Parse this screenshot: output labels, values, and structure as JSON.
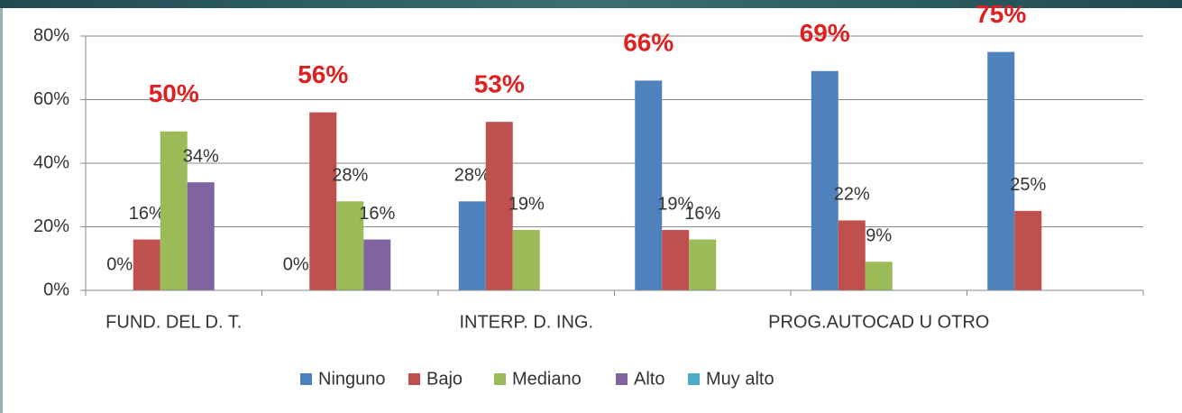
{
  "chart_data": {
    "type": "bar",
    "categories": [
      "FUND. DEL D. T.",
      null,
      "INTERP. D. ING.",
      null,
      "PROG.AUTOCAD U OTRO",
      null
    ],
    "series": [
      {
        "name": "Ninguno",
        "color": "#4f81bd",
        "values": [
          0,
          0,
          28,
          66,
          69,
          75
        ],
        "value_labels": [
          "0%",
          "0%",
          "28%",
          "66%",
          "69%",
          "75%"
        ]
      },
      {
        "name": "Bajo",
        "color": "#c0504d",
        "values": [
          16,
          56,
          53,
          19,
          22,
          25
        ],
        "value_labels": [
          "16%",
          "56%",
          "53%",
          "19%",
          "22%",
          "25%"
        ]
      },
      {
        "name": "Mediano",
        "color": "#9bbb59",
        "values": [
          50,
          28,
          19,
          16,
          9,
          null
        ],
        "value_labels": [
          "50%",
          "28%",
          "19%",
          "16%",
          "9%",
          null
        ]
      },
      {
        "name": "Alto",
        "color": "#8064a2",
        "values": [
          34,
          16,
          null,
          null,
          null,
          null
        ],
        "value_labels": [
          "34%",
          "16%",
          null,
          null,
          null,
          null
        ]
      },
      {
        "name": "Muy alto",
        "color": "#4bacc6",
        "values": [
          null,
          null,
          null,
          null,
          null,
          null
        ],
        "value_labels": [
          null,
          null,
          null,
          null,
          null,
          null
        ]
      }
    ],
    "ylim": [
      0,
      80
    ],
    "yticks": [
      {
        "value": 0,
        "label": "0%"
      },
      {
        "value": 20,
        "label": "20%"
      },
      {
        "value": 40,
        "label": "40%"
      },
      {
        "value": 60,
        "label": "60%"
      },
      {
        "value": 80,
        "label": "80%"
      }
    ],
    "grid": true,
    "legend": "bottom",
    "highlight_color": "#e02020"
  }
}
